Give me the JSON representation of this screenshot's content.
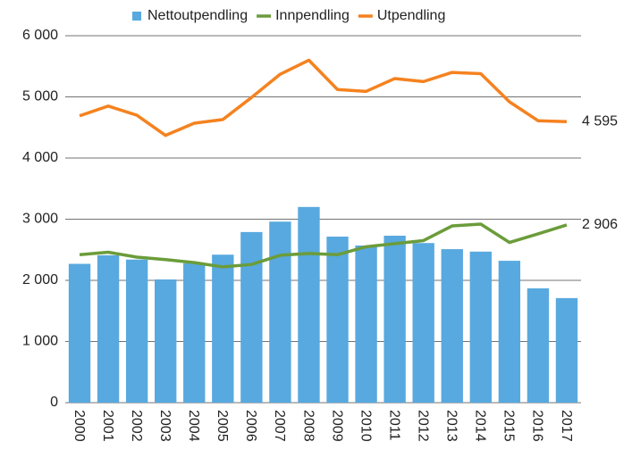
{
  "chart_data": {
    "type": "bar_line",
    "categories": [
      "2000",
      "2001",
      "2002",
      "2003",
      "2004",
      "2005",
      "2006",
      "2007",
      "2008",
      "2009",
      "2010",
      "2011",
      "2012",
      "2013",
      "2014",
      "2015",
      "2016",
      "2017"
    ],
    "series": [
      {
        "name": "Nettoutpendling",
        "type": "bar",
        "color": "#58a9df",
        "values": [
          2270,
          2410,
          2340,
          2015,
          2280,
          2420,
          2790,
          2960,
          3200,
          2715,
          2570,
          2730,
          2610,
          2510,
          2470,
          2320,
          1870,
          1710
        ]
      },
      {
        "name": "Innpendling",
        "type": "line",
        "color": "#6b9c3a",
        "values": [
          2420,
          2460,
          2380,
          2340,
          2290,
          2220,
          2260,
          2410,
          2440,
          2420,
          2550,
          2600,
          2650,
          2890,
          2920,
          2620,
          2760,
          2906
        ],
        "value_labels": [
          null,
          null,
          null,
          null,
          null,
          null,
          null,
          null,
          null,
          null,
          null,
          null,
          null,
          null,
          null,
          null,
          null,
          "2 906"
        ]
      },
      {
        "name": "Utpendling",
        "type": "line",
        "color": "#f5821f",
        "values": [
          4690,
          4850,
          4700,
          4370,
          4570,
          4630,
          4990,
          5370,
          5600,
          5120,
          5090,
          5300,
          5250,
          5400,
          5380,
          4920,
          4610,
          4595
        ],
        "value_labels": [
          null,
          null,
          null,
          null,
          null,
          null,
          null,
          null,
          null,
          null,
          null,
          null,
          null,
          null,
          null,
          null,
          null,
          "4 595"
        ]
      }
    ],
    "ylim": [
      0,
      6000
    ],
    "yticks": [
      0,
      {
        "value": 1000,
        "label": "1 000"
      },
      {
        "value": 2000,
        "label": "2 000"
      },
      {
        "value": 3000,
        "label": "3 000"
      },
      {
        "value": 4000,
        "label": "4 000"
      },
      {
        "value": 5000,
        "label": "5 000"
      },
      {
        "value": 6000,
        "label": "6 000"
      }
    ],
    "grid": true,
    "legend": "top"
  }
}
